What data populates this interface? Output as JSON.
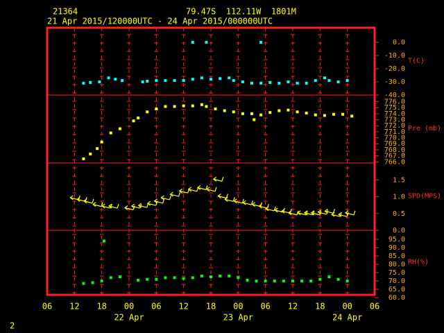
{
  "header": {
    "station": "21364",
    "location": "79.47S  112.11W  1801M",
    "period": "21 Apr 2015/120000UTC - 24 Apr 2015/000000UTC"
  },
  "page_number": "2",
  "chart_data": [
    {
      "type": "scatter",
      "y_label": "T(C)",
      "xlim": [
        6,
        78
      ],
      "ylim": [
        -40,
        11
      ],
      "yticks": [
        {
          "value": 0,
          "label": "0.0"
        },
        {
          "value": -10,
          "label": "-10.0"
        },
        {
          "value": -20,
          "label": "-20.0"
        },
        {
          "value": -30,
          "label": "-30.0"
        },
        {
          "value": -40,
          "label": "-40.0"
        }
      ],
      "series": [
        {
          "color": "#00ffff",
          "x": [
            14,
            15.5,
            17.5,
            19.5,
            21,
            22.5,
            27,
            28,
            30,
            32,
            34,
            36,
            38,
            40,
            42,
            44,
            46,
            47,
            49,
            51,
            53,
            55,
            57,
            59,
            61,
            63,
            65,
            67,
            68,
            70,
            72,
            38,
            41,
            53
          ],
          "values": [
            -31,
            -30.5,
            -30,
            -27,
            -28,
            -29,
            -30,
            -29.5,
            -29,
            -29,
            -29,
            -29,
            -28,
            -27,
            -28,
            -27.5,
            -27,
            -29,
            -30,
            -31,
            -31,
            -30.5,
            -31,
            -30,
            -31,
            -31,
            -29,
            -27,
            -29,
            -30,
            -29,
            0,
            0,
            0
          ]
        }
      ]
    },
    {
      "type": "scatter",
      "y_label": "Pre (mb)",
      "xlim": [
        6,
        78
      ],
      "ylim": [
        765.8,
        777.1
      ],
      "yticks": [
        {
          "value": 776,
          "label": "776.0"
        },
        {
          "value": 775,
          "label": "775.0"
        },
        {
          "value": 774,
          "label": "774.0"
        },
        {
          "value": 773,
          "label": "773.0"
        },
        {
          "value": 772,
          "label": "772.0"
        },
        {
          "value": 771,
          "label": "771.0"
        },
        {
          "value": 770,
          "label": "770.0"
        },
        {
          "value": 769,
          "label": "769.0"
        },
        {
          "value": 768,
          "label": "768.0"
        },
        {
          "value": 767,
          "label": "767.0"
        },
        {
          "value": 766,
          "label": "766.0"
        }
      ],
      "series": [
        {
          "color": "#ffff00",
          "x": [
            14,
            15.5,
            17,
            18,
            20,
            22,
            25,
            26,
            28,
            30,
            32,
            34,
            36,
            38,
            40,
            41,
            43,
            45,
            47,
            49,
            51,
            51.5,
            53,
            55,
            57,
            59,
            61,
            63,
            65,
            67,
            69,
            71,
            73
          ],
          "values": [
            766.5,
            767.3,
            768.2,
            769.3,
            770.8,
            771.5,
            772.8,
            773.3,
            774.3,
            774.8,
            775.2,
            775.2,
            775.3,
            775.3,
            775.5,
            775.2,
            774.8,
            774.5,
            774.3,
            774,
            774,
            773,
            773.8,
            774.2,
            774.5,
            774.6,
            774.3,
            774.1,
            773.8,
            773.7,
            773.9,
            773.9,
            773.6
          ]
        }
      ]
    },
    {
      "type": "barb",
      "y_label": "SPD(MPS)",
      "xlim": [
        6,
        78
      ],
      "ylim": [
        0,
        2
      ],
      "yticks": [
        {
          "value": 1.5,
          "label": "1.5"
        },
        {
          "value": 1,
          "label": "1.0"
        },
        {
          "value": 0.5,
          "label": "0.5"
        },
        {
          "value": 0,
          "label": "0.0"
        }
      ],
      "series": [
        {
          "color": "#ffff00",
          "x": [
            12,
            13.5,
            15,
            17,
            19,
            20.5,
            24,
            25.5,
            27,
            29,
            30.5,
            32,
            34,
            36,
            38,
            40,
            42,
            43.5,
            44.5,
            46,
            48,
            50,
            52,
            53.5,
            55,
            57,
            58.5,
            60,
            62,
            63.5,
            65,
            66.5,
            68,
            69.5,
            71,
            72.5
          ],
          "values": [
            0.95,
            0.9,
            0.85,
            0.75,
            0.7,
            0.7,
            0.65,
            0.7,
            0.72,
            0.78,
            0.85,
            0.95,
            1.05,
            1.15,
            1.2,
            1.25,
            1.2,
            1.5,
            1.0,
            0.9,
            0.85,
            0.8,
            0.75,
            0.7,
            0.62,
            0.58,
            0.55,
            0.5,
            0.5,
            0.5,
            0.5,
            0.52,
            0.55,
            0.45,
            0.45,
            0.5
          ]
        }
      ]
    },
    {
      "type": "scatter",
      "y_label": "RH(%)",
      "xlim": [
        6,
        78
      ],
      "ylim": [
        61.7,
        100.4
      ],
      "yticks": [
        {
          "value": 95,
          "label": "95.0"
        },
        {
          "value": 90,
          "label": "90.0"
        },
        {
          "value": 85,
          "label": "85.0"
        },
        {
          "value": 80,
          "label": "80.0"
        },
        {
          "value": 75,
          "label": "75.0"
        },
        {
          "value": 70,
          "label": "70.0"
        },
        {
          "value": 65,
          "label": "65.0"
        },
        {
          "value": 60,
          "label": "60.0"
        }
      ],
      "xticks": [
        {
          "value": 6,
          "label": "06"
        },
        {
          "value": 12,
          "label": "12"
        },
        {
          "value": 18,
          "label": "18"
        },
        {
          "value": 24,
          "label": "00"
        },
        {
          "value": 30,
          "label": "06"
        },
        {
          "value": 36,
          "label": "12"
        },
        {
          "value": 42,
          "label": "18"
        },
        {
          "value": 48,
          "label": "00"
        },
        {
          "value": 54,
          "label": "06"
        },
        {
          "value": 60,
          "label": "12"
        },
        {
          "value": 66,
          "label": "18"
        },
        {
          "value": 72,
          "label": "00"
        },
        {
          "value": 78,
          "label": "06"
        }
      ],
      "date_ticks": [
        {
          "value": 24,
          "label": "22 Apr"
        },
        {
          "value": 48,
          "label": "23 Apr"
        },
        {
          "value": 72,
          "label": "24 Apr"
        }
      ],
      "series": [
        {
          "color": "#00ff00",
          "x": [
            14,
            16,
            18,
            18.5,
            20,
            22,
            26,
            28,
            30,
            32,
            34,
            36,
            38,
            40,
            42,
            44,
            46,
            48,
            50,
            52,
            54,
            56,
            58,
            60,
            62,
            64,
            66,
            68,
            70,
            72
          ],
          "values": [
            68.5,
            69,
            70,
            94,
            72,
            72.5,
            70.5,
            71,
            71,
            72,
            72,
            71.5,
            72,
            73,
            72.5,
            73,
            73,
            72,
            70.5,
            70,
            70,
            70,
            70,
            70,
            70,
            70,
            71,
            72.5,
            71,
            70
          ]
        }
      ]
    }
  ]
}
